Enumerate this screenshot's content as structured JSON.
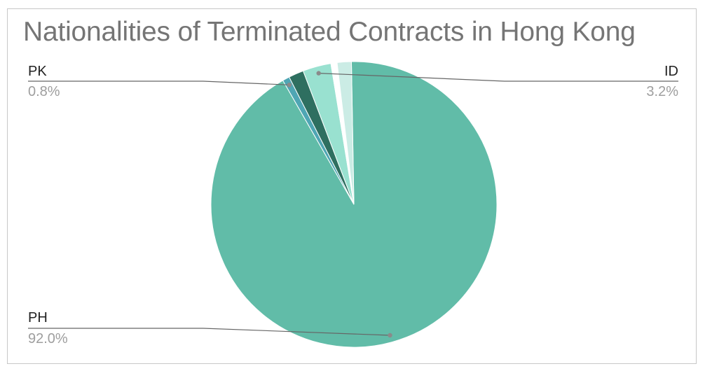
{
  "chart_data": {
    "type": "pie",
    "title": "Nationalities of Terminated Contracts in Hong Kong",
    "slices": [
      {
        "label": "PH",
        "value": 92.0,
        "value_label": "92.0%",
        "color": "#61bca8",
        "labeled": true
      },
      {
        "label": "PK",
        "value": 0.8,
        "value_label": "0.8%",
        "color": "#4fa6b4",
        "labeled": true
      },
      {
        "label": "",
        "value": 1.7,
        "color": "#2e6f60",
        "labeled": false
      },
      {
        "label": "ID",
        "value": 3.2,
        "value_label": "3.2%",
        "color": "#99e1d0",
        "labeled": true
      },
      {
        "label": "",
        "value": 0.7,
        "color": "#ffffff",
        "labeled": false
      },
      {
        "label": "",
        "value": 1.6,
        "color": "#cbece5",
        "labeled": false
      }
    ],
    "start_angle_deg": -1.0,
    "legend": "none"
  }
}
